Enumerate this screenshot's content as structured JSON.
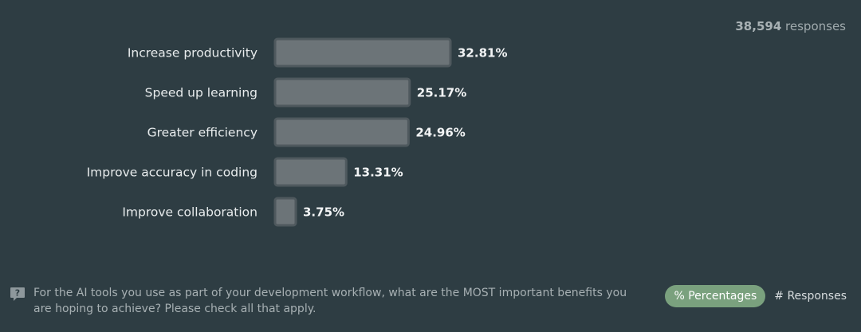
{
  "header": {
    "responses_number": "38,594",
    "responses_word": "responses"
  },
  "chart_data": {
    "type": "bar",
    "orientation": "horizontal",
    "categories": [
      "Increase productivity",
      "Speed up learning",
      "Greater efficiency",
      "Improve accuracy in coding",
      "Improve collaboration"
    ],
    "values": [
      32.81,
      25.17,
      24.96,
      13.31,
      3.75
    ],
    "value_labels": [
      "32.81%",
      "25.17%",
      "24.96%",
      "13.31%",
      "3.75%"
    ],
    "unit": "%",
    "grid": false,
    "bar_color": "#6c7478",
    "bar_border_color": "#4f595e"
  },
  "footer": {
    "help_icon": "question-mark-icon",
    "question": "For the AI tools you use as part of your development workflow, what are the MOST important benefits you are hoping to achieve? Please check all that apply."
  },
  "toggle": {
    "percentages_label": "% Percentages",
    "responses_label": "# Responses",
    "active_color": "#7aa17e"
  }
}
